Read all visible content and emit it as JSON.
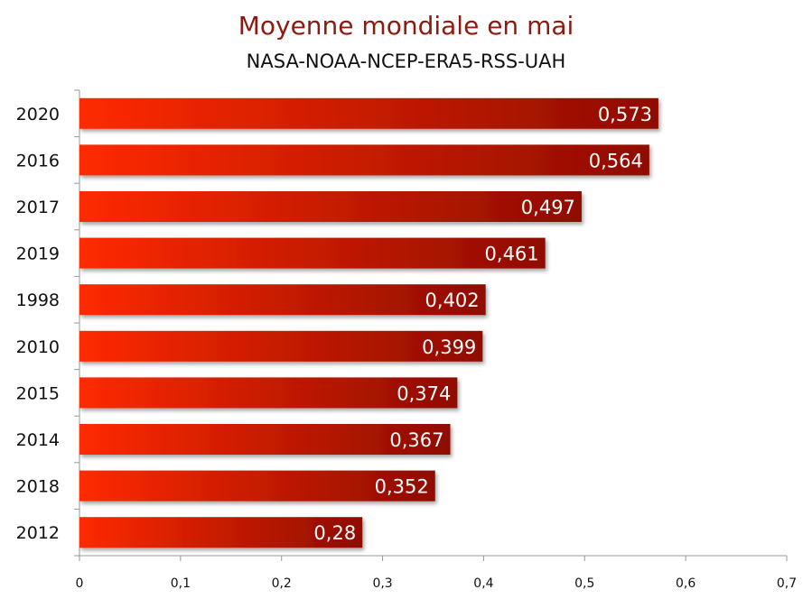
{
  "chart_data": {
    "type": "bar",
    "orientation": "horizontal",
    "title": "Moyenne mondiale en mai",
    "subtitle": "NASA-NOAA-NCEP-ERA5-RSS-UAH",
    "categories": [
      "2020",
      "2016",
      "2017",
      "2019",
      "1998",
      "2010",
      "2015",
      "2014",
      "2018",
      "2012"
    ],
    "values": [
      0.573,
      0.564,
      0.497,
      0.461,
      0.402,
      0.399,
      0.374,
      0.367,
      0.352,
      0.28
    ],
    "value_labels": [
      "0,573",
      "0,564",
      "0,497",
      "0,461",
      "0,402",
      "0,399",
      "0,374",
      "0,367",
      "0,352",
      "0,28"
    ],
    "xlim": [
      0,
      0.7
    ],
    "x_ticks": [
      0,
      0.1,
      0.2,
      0.3,
      0.4,
      0.5,
      0.6,
      0.7
    ],
    "x_tick_labels": [
      "0",
      "0,1",
      "0,2",
      "0,3",
      "0,4",
      "0,5",
      "0,6",
      "0,7"
    ],
    "xlabel": "",
    "ylabel": "",
    "grid": false,
    "legend": "none",
    "colors": {
      "bar_start": "#ff2a05",
      "bar_end": "#8e0c04",
      "title": "#8b1a10"
    }
  }
}
